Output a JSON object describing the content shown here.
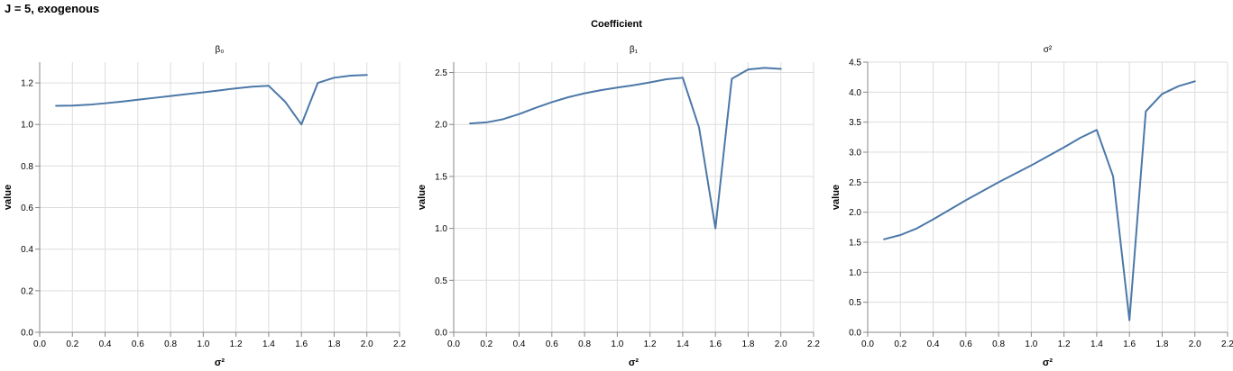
{
  "title": "J = 5, exogenous",
  "facet_header": "Coefficient",
  "chart_data": [
    {
      "type": "line",
      "title": "β₀",
      "xlabel": "σ²",
      "ylabel": "value",
      "xlim": [
        0,
        2.2
      ],
      "ylim": [
        0,
        1.3
      ],
      "xticks": [
        0,
        0.2,
        0.4,
        0.6,
        0.8,
        1,
        1.2,
        1.4,
        1.6,
        1.8,
        2,
        2.2
      ],
      "xtick_labels": [
        "0.0",
        "0.2",
        "0.4",
        "0.6",
        "0.8",
        "1.0",
        "1.2",
        "1.4",
        "1.6",
        "1.8",
        "2.0",
        "2.2"
      ],
      "yticks": [
        0,
        0.2,
        0.4,
        0.6,
        0.8,
        1,
        1.2
      ],
      "ytick_labels": [
        "0.0",
        "0.2",
        "0.4",
        "0.6",
        "0.8",
        "1.0",
        "1.2"
      ],
      "color": "#4c78a8",
      "x": [
        0.1,
        0.2,
        0.3,
        0.4,
        0.5,
        0.6,
        0.7,
        0.8,
        0.9,
        1.0,
        1.1,
        1.2,
        1.3,
        1.4,
        1.5,
        1.6,
        1.7,
        1.8,
        1.9,
        2.0
      ],
      "y": [
        1.09,
        1.091,
        1.095,
        1.102,
        1.11,
        1.119,
        1.128,
        1.137,
        1.146,
        1.155,
        1.164,
        1.174,
        1.182,
        1.186,
        1.11,
        1.0,
        1.2,
        1.225,
        1.235,
        1.238
      ]
    },
    {
      "type": "line",
      "title": "β₁",
      "xlabel": "σ²",
      "ylabel": "value",
      "xlim": [
        0,
        2.2
      ],
      "ylim": [
        0,
        2.6
      ],
      "xticks": [
        0,
        0.2,
        0.4,
        0.6,
        0.8,
        1,
        1.2,
        1.4,
        1.6,
        1.8,
        2,
        2.2
      ],
      "xtick_labels": [
        "0.0",
        "0.2",
        "0.4",
        "0.6",
        "0.8",
        "1.0",
        "1.2",
        "1.4",
        "1.6",
        "1.8",
        "2.0",
        "2.2"
      ],
      "yticks": [
        0,
        0.5,
        1,
        1.5,
        2,
        2.5
      ],
      "ytick_labels": [
        "0.0",
        "0.5",
        "1.0",
        "1.5",
        "2.0",
        "2.5"
      ],
      "color": "#4c78a8",
      "x": [
        0.1,
        0.2,
        0.3,
        0.4,
        0.5,
        0.6,
        0.7,
        0.8,
        0.9,
        1.0,
        1.1,
        1.2,
        1.3,
        1.4,
        1.5,
        1.6,
        1.7,
        1.8,
        1.9,
        2.0
      ],
      "y": [
        2.01,
        2.02,
        2.05,
        2.1,
        2.16,
        2.215,
        2.262,
        2.3,
        2.33,
        2.355,
        2.378,
        2.405,
        2.435,
        2.45,
        1.97,
        1.0,
        2.44,
        2.53,
        2.545,
        2.535
      ]
    },
    {
      "type": "line",
      "title": "σ²",
      "xlabel": "σ²",
      "ylabel": "value",
      "xlim": [
        0,
        2.2
      ],
      "ylim": [
        0,
        4.5
      ],
      "xticks": [
        0,
        0.2,
        0.4,
        0.6,
        0.8,
        1,
        1.2,
        1.4,
        1.6,
        1.8,
        2,
        2.2
      ],
      "xtick_labels": [
        "0.0",
        "0.2",
        "0.4",
        "0.6",
        "0.8",
        "1.0",
        "1.2",
        "1.4",
        "1.6",
        "1.8",
        "2.0",
        "2.2"
      ],
      "yticks": [
        0,
        0.5,
        1,
        1.5,
        2,
        2.5,
        3,
        3.5,
        4,
        4.5
      ],
      "ytick_labels": [
        "0.0",
        "0.5",
        "1.0",
        "1.5",
        "2.0",
        "2.5",
        "3.0",
        "3.5",
        "4.0",
        "4.5"
      ],
      "color": "#4c78a8",
      "x": [
        0.1,
        0.2,
        0.3,
        0.4,
        0.5,
        0.6,
        0.7,
        0.8,
        0.9,
        1.0,
        1.1,
        1.2,
        1.3,
        1.4,
        1.5,
        1.6,
        1.7,
        1.8,
        1.9,
        2.0
      ],
      "y": [
        1.55,
        1.62,
        1.73,
        1.88,
        2.04,
        2.2,
        2.35,
        2.5,
        2.64,
        2.78,
        2.93,
        3.08,
        3.24,
        3.37,
        2.6,
        0.2,
        3.68,
        3.97,
        4.1,
        4.18
      ]
    }
  ]
}
